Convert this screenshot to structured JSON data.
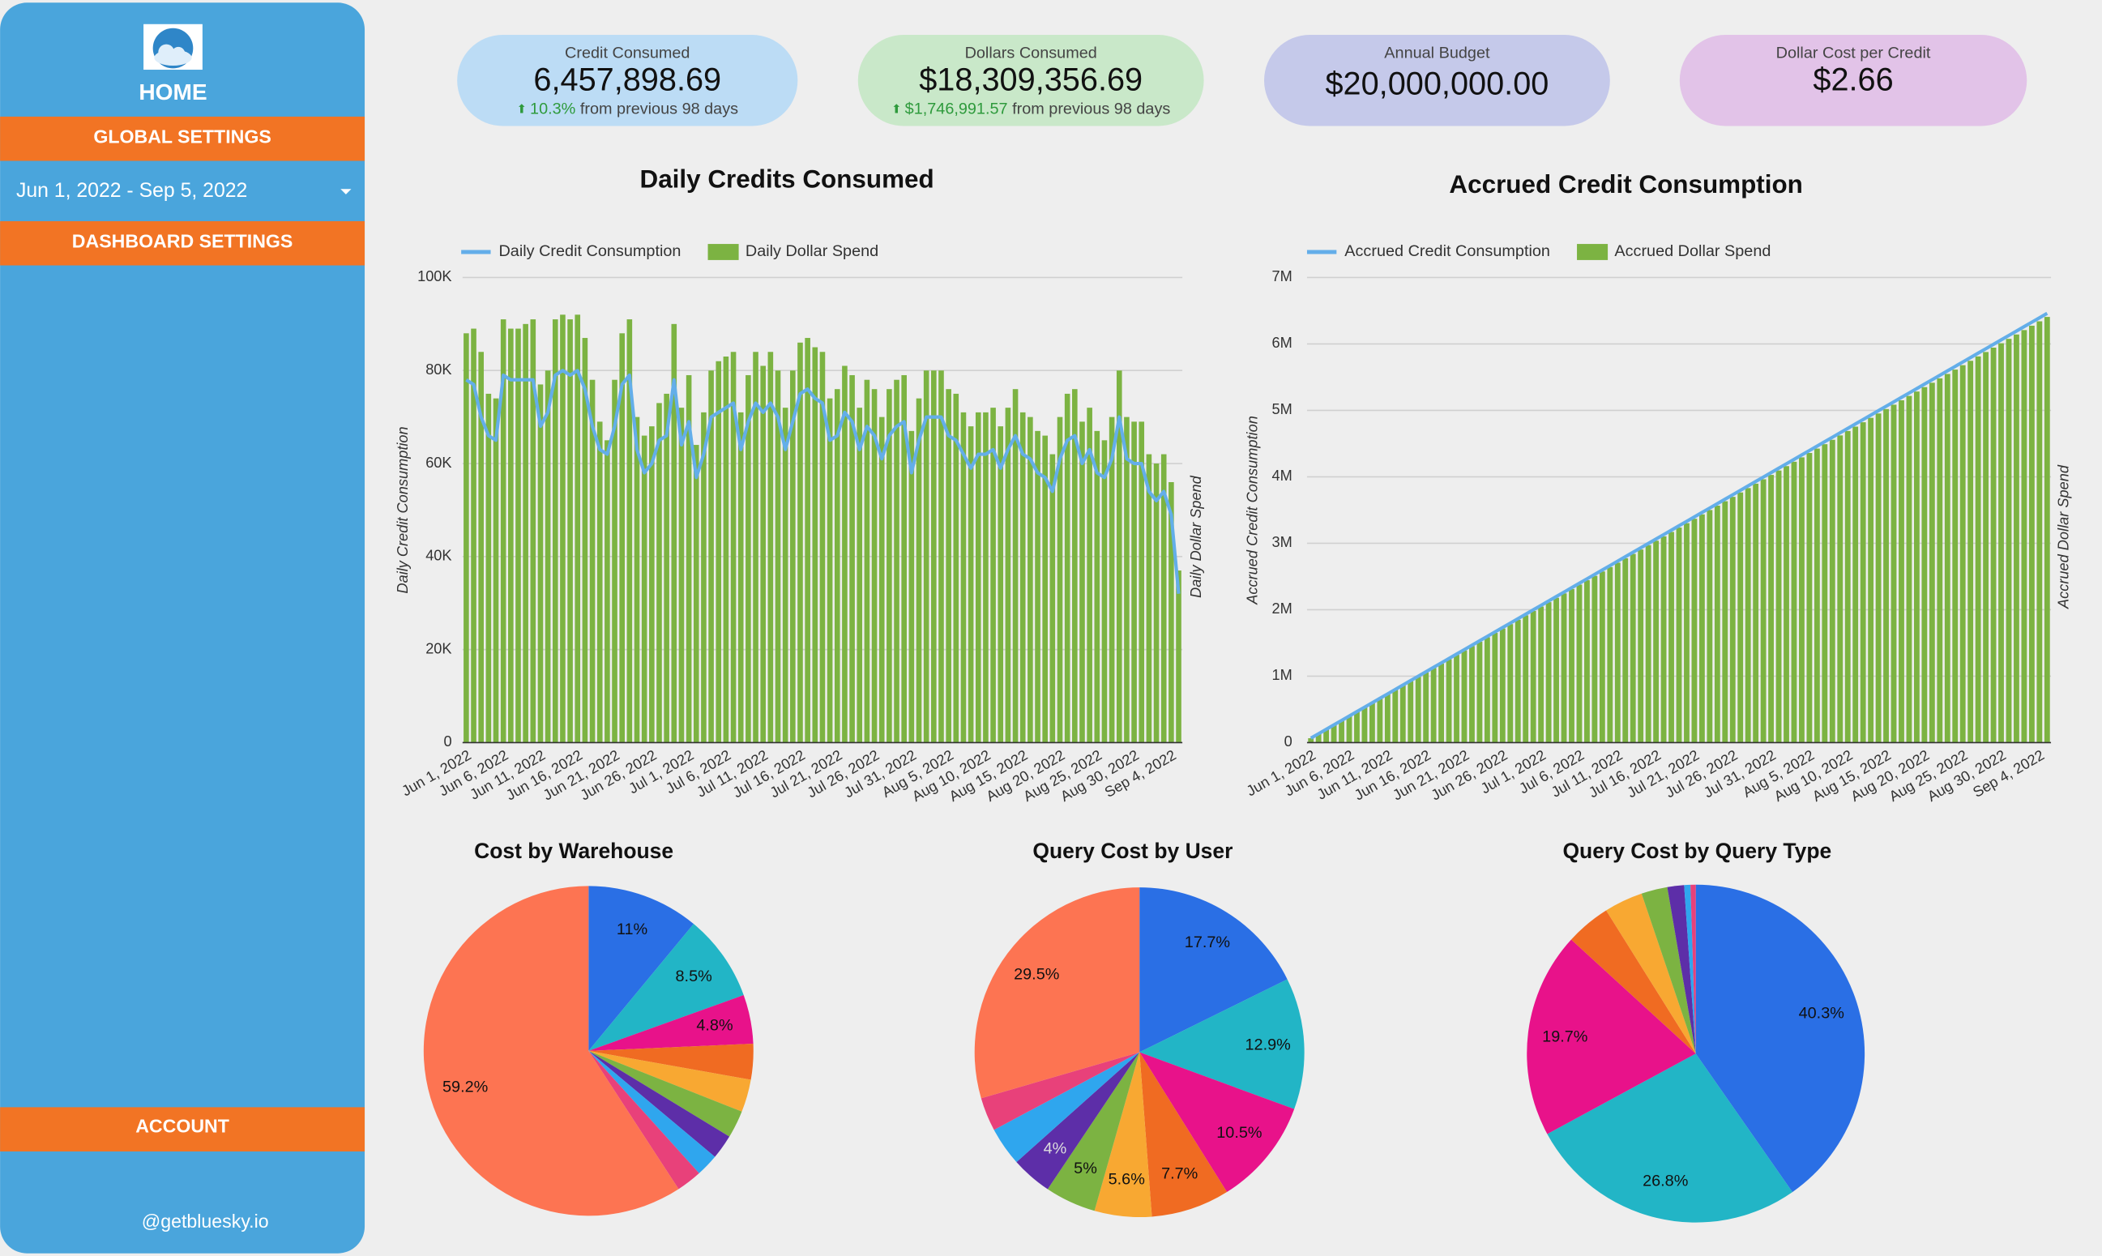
{
  "sidebar": {
    "home": "HOME",
    "global_settings": "GLOBAL SETTINGS",
    "date_range": "Jun 1, 2022 - Sep 5, 2022",
    "dashboard_settings": "DASHBOARD SETTINGS",
    "account": "ACCOUNT",
    "footer": "@getbluesky.io"
  },
  "kpis": [
    {
      "title": "Credit Consumed",
      "value": "6,457,898.69",
      "change": "10.3%",
      "note": "from previous 98 days",
      "color": "#bcdcf5"
    },
    {
      "title": "Dollars Consumed",
      "value": "$18,309,356.69",
      "change": "$1,746,991.57",
      "note": "from previous 98 days",
      "color": "#c9e8c9"
    },
    {
      "title": "Annual Budget",
      "value": "$20,000,000.00",
      "color": "#c5c9ea"
    },
    {
      "title": "Dollar Cost per Credit",
      "value": "$2.66",
      "color": "#e2c3e8"
    }
  ],
  "chart_data": [
    {
      "type": "combo",
      "title": "Daily Credits Consumed",
      "ylabel": "Daily Credit Consumption",
      "y2label": "Daily Dollar Spend",
      "legend": "top-left",
      "grid": true,
      "categories": [
        "Jun 1, 2022",
        null,
        null,
        null,
        null,
        "Jun 6, 2022",
        null,
        null,
        null,
        null,
        "Jun 11, 2022",
        null,
        null,
        null,
        null,
        "Jun 16, 2022",
        null,
        null,
        null,
        null,
        "Jun 21, 2022",
        null,
        null,
        null,
        null,
        "Jun 26, 2022",
        null,
        null,
        null,
        null,
        "Jul 1, 2022",
        null,
        null,
        null,
        null,
        "Jul 6, 2022",
        null,
        null,
        null,
        null,
        "Jul 11, 2022",
        null,
        null,
        null,
        null,
        "Jul 16, 2022",
        null,
        null,
        null,
        null,
        "Jul 21, 2022",
        null,
        null,
        null,
        null,
        "Jul 26, 2022",
        null,
        null,
        null,
        null,
        "Jul 31, 2022",
        null,
        null,
        null,
        null,
        "Aug 5, 2022",
        null,
        null,
        null,
        null,
        "Aug 10, 2022",
        null,
        null,
        null,
        null,
        "Aug 15, 2022",
        null,
        null,
        null,
        null,
        "Aug 20, 2022",
        null,
        null,
        null,
        null,
        "Aug 25, 2022",
        null,
        null,
        null,
        null,
        "Aug 30, 2022",
        null,
        null,
        null,
        null,
        "Sep 4, 2022",
        null
      ],
      "series": [
        {
          "name": "Daily Credit Consumption",
          "type": "line",
          "color": "#63aee9",
          "values": [
            78000,
            77000,
            70000,
            66000,
            65000,
            79000,
            78000,
            78000,
            78000,
            78000,
            68000,
            71000,
            79000,
            80000,
            79000,
            80000,
            76000,
            68000,
            63000,
            62000,
            68000,
            77000,
            79000,
            63000,
            58000,
            60000,
            65000,
            66000,
            78000,
            64000,
            69000,
            57000,
            62000,
            70000,
            71000,
            72000,
            73000,
            63000,
            69000,
            73000,
            71000,
            73000,
            70000,
            63000,
            69000,
            75000,
            76000,
            74000,
            73000,
            65000,
            66000,
            71000,
            69000,
            63000,
            68000,
            66000,
            61000,
            66000,
            68000,
            69000,
            58000,
            65000,
            70000,
            70000,
            70000,
            66000,
            65000,
            62000,
            59000,
            62000,
            62000,
            63000,
            59000,
            63000,
            66000,
            62000,
            61000,
            58000,
            57000,
            54000,
            61000,
            65000,
            66000,
            60000,
            63000,
            58000,
            57000,
            61000,
            70000,
            61000,
            60000,
            60000,
            54000,
            52000,
            54000,
            49000,
            32000
          ]
        },
        {
          "name": "Daily Dollar Spend",
          "type": "bar",
          "axis": "y2",
          "color": "#7cb342",
          "values": [
            220000,
            222500,
            210000,
            187500,
            185000,
            227500,
            222500,
            222500,
            225000,
            227500,
            192500,
            200000,
            227500,
            230000,
            227500,
            230000,
            217500,
            195000,
            172500,
            162500,
            195000,
            220000,
            227500,
            175000,
            165000,
            170000,
            182500,
            187500,
            225000,
            180000,
            197500,
            160000,
            177500,
            200000,
            205000,
            207500,
            210000,
            177500,
            197500,
            210000,
            202500,
            210000,
            200000,
            180000,
            200000,
            215000,
            217500,
            212500,
            210000,
            185000,
            190000,
            202500,
            197500,
            180000,
            195000,
            190000,
            175000,
            190000,
            195000,
            197500,
            167500,
            185000,
            200000,
            200000,
            200000,
            190000,
            187500,
            177500,
            170000,
            177500,
            177500,
            180000,
            170000,
            180000,
            190000,
            177500,
            175000,
            167500,
            165000,
            155000,
            175000,
            187500,
            190000,
            172500,
            180000,
            167500,
            162500,
            175000,
            200000,
            175000,
            172500,
            172500,
            155000,
            150000,
            155000,
            140000,
            92500
          ]
        }
      ],
      "ylim": [
        0,
        100000
      ],
      "yticks": [
        0,
        {
          "value": 20000,
          "label": "20K"
        },
        {
          "value": 40000,
          "label": "40K"
        },
        {
          "value": 60000,
          "label": "60K"
        },
        {
          "value": 80000,
          "label": "80K"
        },
        {
          "value": 100000,
          "label": "100K"
        }
      ],
      "y2lim": [
        0,
        250000
      ]
    },
    {
      "type": "combo",
      "title": "Accrued Credit Consumption",
      "ylabel": "Accrued Credit Consumption",
      "y2label": "Accrued Dollar Spend",
      "legend": "top-left",
      "grid": true,
      "categories": [
        "Jun 1, 2022",
        null,
        null,
        null,
        null,
        "Jun 6, 2022",
        null,
        null,
        null,
        null,
        "Jun 11, 2022",
        null,
        null,
        null,
        null,
        "Jun 16, 2022",
        null,
        null,
        null,
        null,
        "Jun 21, 2022",
        null,
        null,
        null,
        null,
        "Jun 26, 2022",
        null,
        null,
        null,
        null,
        "Jul 1, 2022",
        null,
        null,
        null,
        null,
        "Jul 6, 2022",
        null,
        null,
        null,
        null,
        "Jul 11, 2022",
        null,
        null,
        null,
        null,
        "Jul 16, 2022",
        null,
        null,
        null,
        null,
        "Jul 21, 2022",
        null,
        null,
        null,
        null,
        "Jul 26, 2022",
        null,
        null,
        null,
        null,
        "Jul 31, 2022",
        null,
        null,
        null,
        null,
        "Aug 5, 2022",
        null,
        null,
        null,
        null,
        "Aug 10, 2022",
        null,
        null,
        null,
        null,
        "Aug 15, 2022",
        null,
        null,
        null,
        null,
        "Aug 20, 2022",
        null,
        null,
        null,
        null,
        "Aug 25, 2022",
        null,
        null,
        null,
        null,
        "Aug 30, 2022",
        null,
        null,
        null,
        null,
        "Sep 4, 2022",
        null
      ],
      "series": [
        {
          "name": "Accrued Credit Consumption",
          "type": "line",
          "color": "#63aee9",
          "values": [
            66600,
            133200,
            199800,
            266400,
            333000,
            399600,
            466200,
            532800,
            599400,
            666000,
            732600,
            799200,
            865800,
            932400,
            999000,
            1065600,
            1132200,
            1198800,
            1265400,
            1332000,
            1398600,
            1465200,
            1531800,
            1598400,
            1665000,
            1731600,
            1798200,
            1864800,
            1931400,
            1998000,
            2064600,
            2131200,
            2197800,
            2264400,
            2331000,
            2397600,
            2464200,
            2530800,
            2597400,
            2664000,
            2730600,
            2797200,
            2863800,
            2930400,
            2997000,
            3063600,
            3130200,
            3196800,
            3263400,
            3330000,
            3396600,
            3463200,
            3529800,
            3596400,
            3663000,
            3729600,
            3796200,
            3862800,
            3929400,
            3996000,
            4062600,
            4129200,
            4195800,
            4262400,
            4329000,
            4395600,
            4462200,
            4528800,
            4595400,
            4662000,
            4728600,
            4795200,
            4861800,
            4928400,
            4995000,
            5061600,
            5128200,
            5194800,
            5261400,
            5328000,
            5394600,
            5461200,
            5527800,
            5594400,
            5661000,
            5727600,
            5794200,
            5860800,
            5927400,
            5994000,
            6060600,
            6127200,
            6193800,
            6260400,
            6327000,
            6393600,
            6460200
          ]
        },
        {
          "name": "Accrued Dollar Spend",
          "type": "bar",
          "axis": "y2",
          "color": "#7cb342",
          "values": [
            188700,
            377400,
            566100,
            754800,
            943500,
            1132200,
            1320900,
            1509600,
            1698300,
            1887000,
            2075700,
            2264400,
            2453100,
            2641800,
            2830500,
            3019200,
            3207900,
            3396600,
            3585300,
            3774000,
            3962700,
            4151400,
            4340100,
            4528800,
            4717500,
            4906200,
            5094900,
            5283600,
            5472300,
            5661000,
            5849700,
            6038400,
            6227100,
            6415800,
            6604500,
            6793200,
            6981900,
            7170600,
            7359300,
            7548000,
            7736700,
            7925400,
            8114100,
            8302800,
            8491500,
            8680200,
            8868900,
            9057600,
            9246300,
            9435000,
            9623700,
            9812400,
            10001100,
            10189800,
            10378500,
            10567200,
            10755900,
            10944600,
            11133300,
            11322000,
            11510700,
            11699400,
            11888100,
            12076800,
            12265500,
            12454200,
            12642900,
            12831600,
            13020300,
            13209000,
            13397700,
            13586400,
            13775100,
            13963800,
            14152500,
            14341200,
            14529900,
            14718600,
            14907300,
            15096000,
            15284700,
            15473400,
            15662100,
            15850800,
            16039500,
            16228200,
            16416900,
            16605600,
            16794300,
            16983000,
            17171700,
            17360400,
            17549100,
            17737800,
            17926500,
            18115200,
            18303900
          ]
        }
      ],
      "ylim": [
        0,
        7000000
      ],
      "yticks": [
        0,
        {
          "value": 1000000,
          "label": "1M"
        },
        {
          "value": 2000000,
          "label": "2M"
        },
        {
          "value": 3000000,
          "label": "3M"
        },
        {
          "value": 4000000,
          "label": "4M"
        },
        {
          "value": 5000000,
          "label": "5M"
        },
        {
          "value": 6000000,
          "label": "6M"
        },
        {
          "value": 7000000,
          "label": "7M"
        }
      ],
      "y2lim": [
        0,
        20000000
      ]
    },
    {
      "type": "pie",
      "title": "Cost by Warehouse",
      "values": [
        11,
        8.5,
        4.8,
        3.5,
        3.2,
        2.7,
        2.4,
        2.2,
        2.5,
        59.2
      ],
      "value_labels": [
        "11%",
        "8.5%",
        "4.8%",
        null,
        null,
        null,
        null,
        null,
        null,
        "59.2%"
      ],
      "colors": [
        "#2a6fe5",
        "#22b5c6",
        "#e8128a",
        "#f06b22",
        "#f8a832",
        "#7cb342",
        "#5d2ea8",
        "#2fa6ee",
        "#e8417a",
        "#fd7452"
      ]
    },
    {
      "type": "pie",
      "title": "Query Cost by User",
      "values": [
        17.7,
        12.9,
        10.5,
        7.7,
        5.6,
        5,
        4,
        3.8,
        3.3,
        29.5
      ],
      "value_labels": [
        "17.7%",
        "12.9%",
        "10.5%",
        "7.7%",
        "5.6%",
        "5%",
        "4%",
        null,
        null,
        "29.5%"
      ],
      "colors": [
        "#2a6fe5",
        "#22b5c6",
        "#e8128a",
        "#f06b22",
        "#f8a832",
        "#7cb342",
        "#5d2ea8",
        "#2fa6ee",
        "#e8417a",
        "#fd7452"
      ]
    },
    {
      "type": "pie",
      "title": "Query Cost by Query Type",
      "values": [
        40.3,
        26.8,
        19.7,
        4.3,
        3.7,
        2.5,
        1.6,
        0.6,
        0.5
      ],
      "value_labels": [
        "40.3%",
        "26.8%",
        "19.7%",
        null,
        null,
        null,
        null,
        null,
        null
      ],
      "colors": [
        "#2a6fe5",
        "#22b5c6",
        "#e8128a",
        "#f06b22",
        "#f8a832",
        "#7cb342",
        "#5d2ea8",
        "#2fa6ee",
        "#e8417a"
      ]
    }
  ]
}
